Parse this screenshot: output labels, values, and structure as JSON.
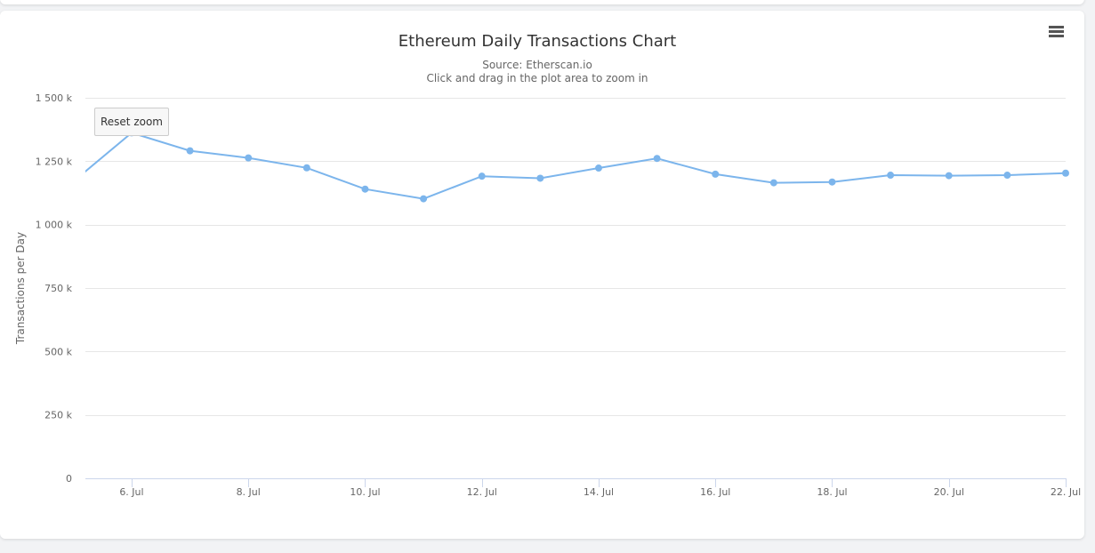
{
  "chart_data": {
    "type": "line",
    "title": "Ethereum Daily Transactions Chart",
    "subtitle": "Source: Etherscan.io",
    "subtitle2": "Click and drag in the plot area to zoom in",
    "xlabel": "",
    "ylabel": "Transactions per Day",
    "ylim": [
      0,
      1500000
    ],
    "yticks": [
      0,
      250000,
      500000,
      750000,
      1000000,
      1250000,
      1500000
    ],
    "ytick_labels": [
      "0",
      "250 k",
      "500 k",
      "750 k",
      "1 000 k",
      "1 250 k",
      "1 500 k"
    ],
    "xlim": [
      "2017-07-05T05:00",
      "2017-07-22T00:00"
    ],
    "xticks": [
      "2017-07-06",
      "2017-07-08",
      "2017-07-10",
      "2017-07-12",
      "2017-07-14",
      "2017-07-16",
      "2017-07-18",
      "2017-07-20",
      "2017-07-22"
    ],
    "xtick_labels": [
      "6. Jul",
      "8. Jul",
      "10. Jul",
      "12. Jul",
      "14. Jul",
      "16. Jul",
      "18. Jul",
      "20. Jul",
      "22. Jul"
    ],
    "grid": true,
    "legend": false,
    "color": "#7cb5ec",
    "series": [
      {
        "x": [
          "2017-07-05",
          "2017-07-06",
          "2017-07-07",
          "2017-07-08",
          "2017-07-09",
          "2017-07-10",
          "2017-07-11",
          "2017-07-12",
          "2017-07-13",
          "2017-07-14",
          "2017-07-15",
          "2017-07-16",
          "2017-07-17",
          "2017-07-18",
          "2017-07-19",
          "2017-07-20",
          "2017-07-21",
          "2017-07-22"
        ],
        "values": [
          1170000,
          1362000,
          1291000,
          1263000,
          1224000,
          1140000,
          1102000,
          1191000,
          1183000,
          1223000,
          1261000,
          1199000,
          1165000,
          1168000,
          1195000,
          1193000,
          1195000,
          1203000
        ]
      }
    ]
  },
  "ui": {
    "reset_zoom_label": "Reset zoom",
    "menu_icon": "hamburger-menu-icon"
  }
}
